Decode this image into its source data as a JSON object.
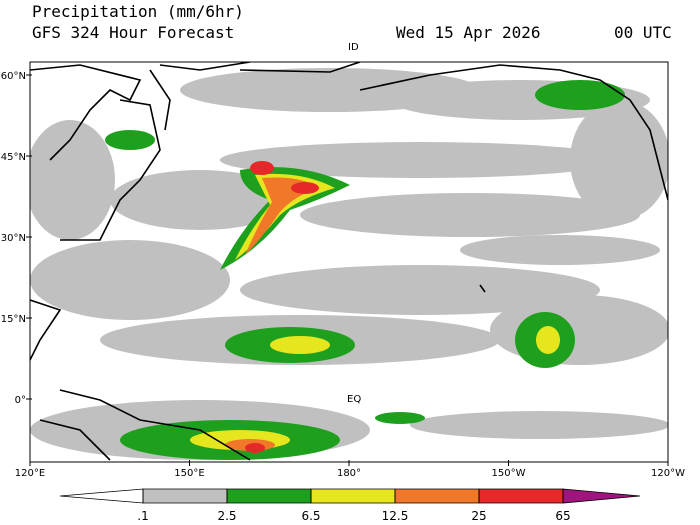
{
  "header": {
    "title": "Precipitation (mm/6hr)",
    "subtitle": "GFS 324 Hour Forecast",
    "date": "Wed 15 Apr 2026",
    "time": "00 UTC"
  },
  "map": {
    "lat_labels": [
      "60°N",
      "45°N",
      "30°N",
      "15°N",
      "0°"
    ],
    "lon_labels": [
      "120°E",
      "150°E",
      "180°",
      "150°W",
      "120°W"
    ],
    "annotations": [
      "ID",
      "EQ"
    ]
  },
  "colorbar": {
    "levels": [
      {
        "value": 0.1,
        "label": ".1"
      },
      2.5,
      6.5,
      12.5,
      25,
      65
    ],
    "colors": [
      "#ffffff",
      "#c0c0c0",
      "#1ea01e",
      "#e6e61e",
      "#f07828",
      "#e62828",
      "#a0147d"
    ]
  }
}
